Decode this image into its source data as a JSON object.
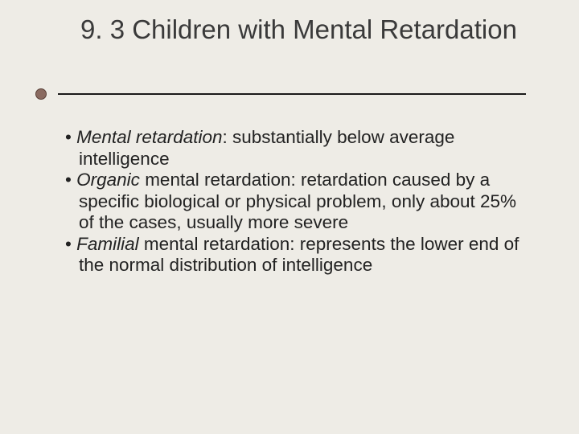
{
  "slide": {
    "background_color": "#eeece6",
    "title": "9. 3 Children with Mental Retardation",
    "title_fontsize": 33,
    "title_color": "#3a3a3a",
    "rule": {
      "color": "#1a1a1a",
      "dot_fill": "#8a6a60",
      "dot_border": "#5a4038"
    },
    "bullets": [
      {
        "italic_lead": "Mental retardation",
        "rest": ": substantially below average intelligence"
      },
      {
        "italic_lead": "Organic",
        "rest": " mental retardation: retardation caused by a specific biological or physical problem, only about 25% of the cases, usually more severe"
      },
      {
        "italic_lead": "Familial",
        "rest": " mental retardation: represents the lower end of the normal distribution of intelligence"
      }
    ],
    "body_fontsize": 22.5,
    "body_color": "#222222"
  }
}
